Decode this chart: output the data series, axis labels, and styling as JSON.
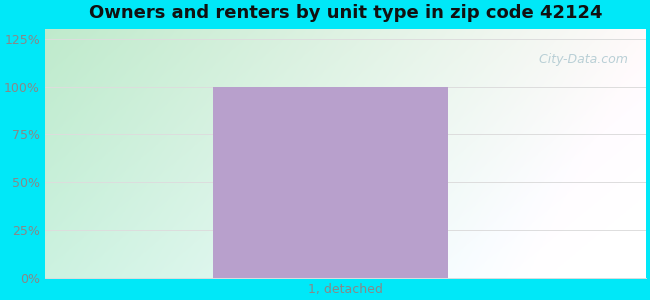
{
  "title": "Owners and renters by unit type in zip code 42124",
  "title_fontsize": 13,
  "title_fontweight": "bold",
  "categories": [
    "1, detached"
  ],
  "bar_value": 100,
  "bar_color": "#b8a0cc",
  "yticks": [
    0,
    25,
    50,
    75,
    100,
    125
  ],
  "ytick_labels": [
    "0%",
    "25%",
    "50%",
    "75%",
    "100%",
    "125%"
  ],
  "ylim": [
    0,
    130
  ],
  "outer_bg_color": "#00e8f8",
  "watermark_text": "  City-Data.com",
  "tick_color": "#888888",
  "tick_fontsize": 9,
  "xlabel_fontsize": 9,
  "grid_color": "#dddddd",
  "title_color": "#111111"
}
